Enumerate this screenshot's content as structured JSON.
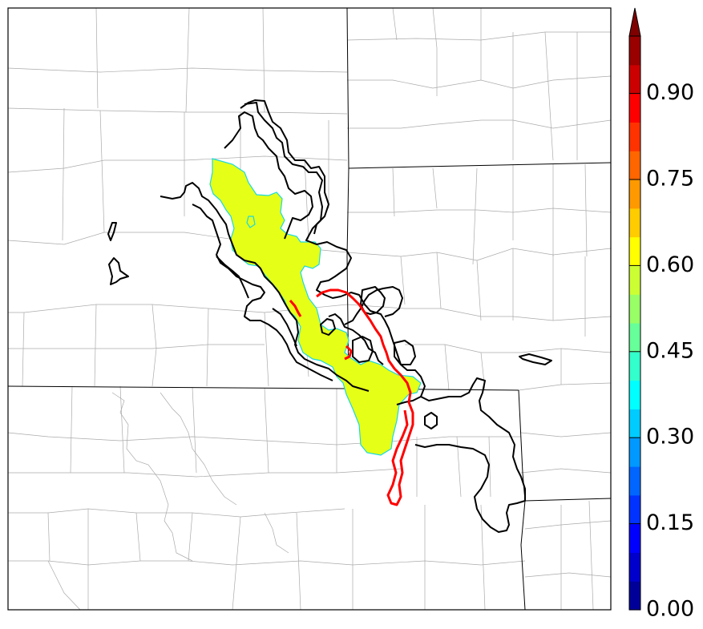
{
  "map": {
    "probability_area_value": 0.6,
    "colors": {
      "probability_fill": "#e6ff17",
      "probability_edge": "#19d9e0",
      "ensemble_contour": "#000000",
      "observed_contour": "#ff0000",
      "county_lines": "#aaaaaa",
      "state_lines": "#000000"
    }
  },
  "colorbar": {
    "min": 0.0,
    "max": 1.0,
    "step": 0.05,
    "extend": "max",
    "colormap": "jet",
    "ticks": [
      {
        "value": 0.0,
        "label": "0.00"
      },
      {
        "value": 0.15,
        "label": "0.15"
      },
      {
        "value": 0.3,
        "label": "0.30"
      },
      {
        "value": 0.45,
        "label": "0.45"
      },
      {
        "value": 0.6,
        "label": "0.60"
      },
      {
        "value": 0.75,
        "label": "0.75"
      },
      {
        "value": 0.9,
        "label": "0.90"
      }
    ]
  }
}
